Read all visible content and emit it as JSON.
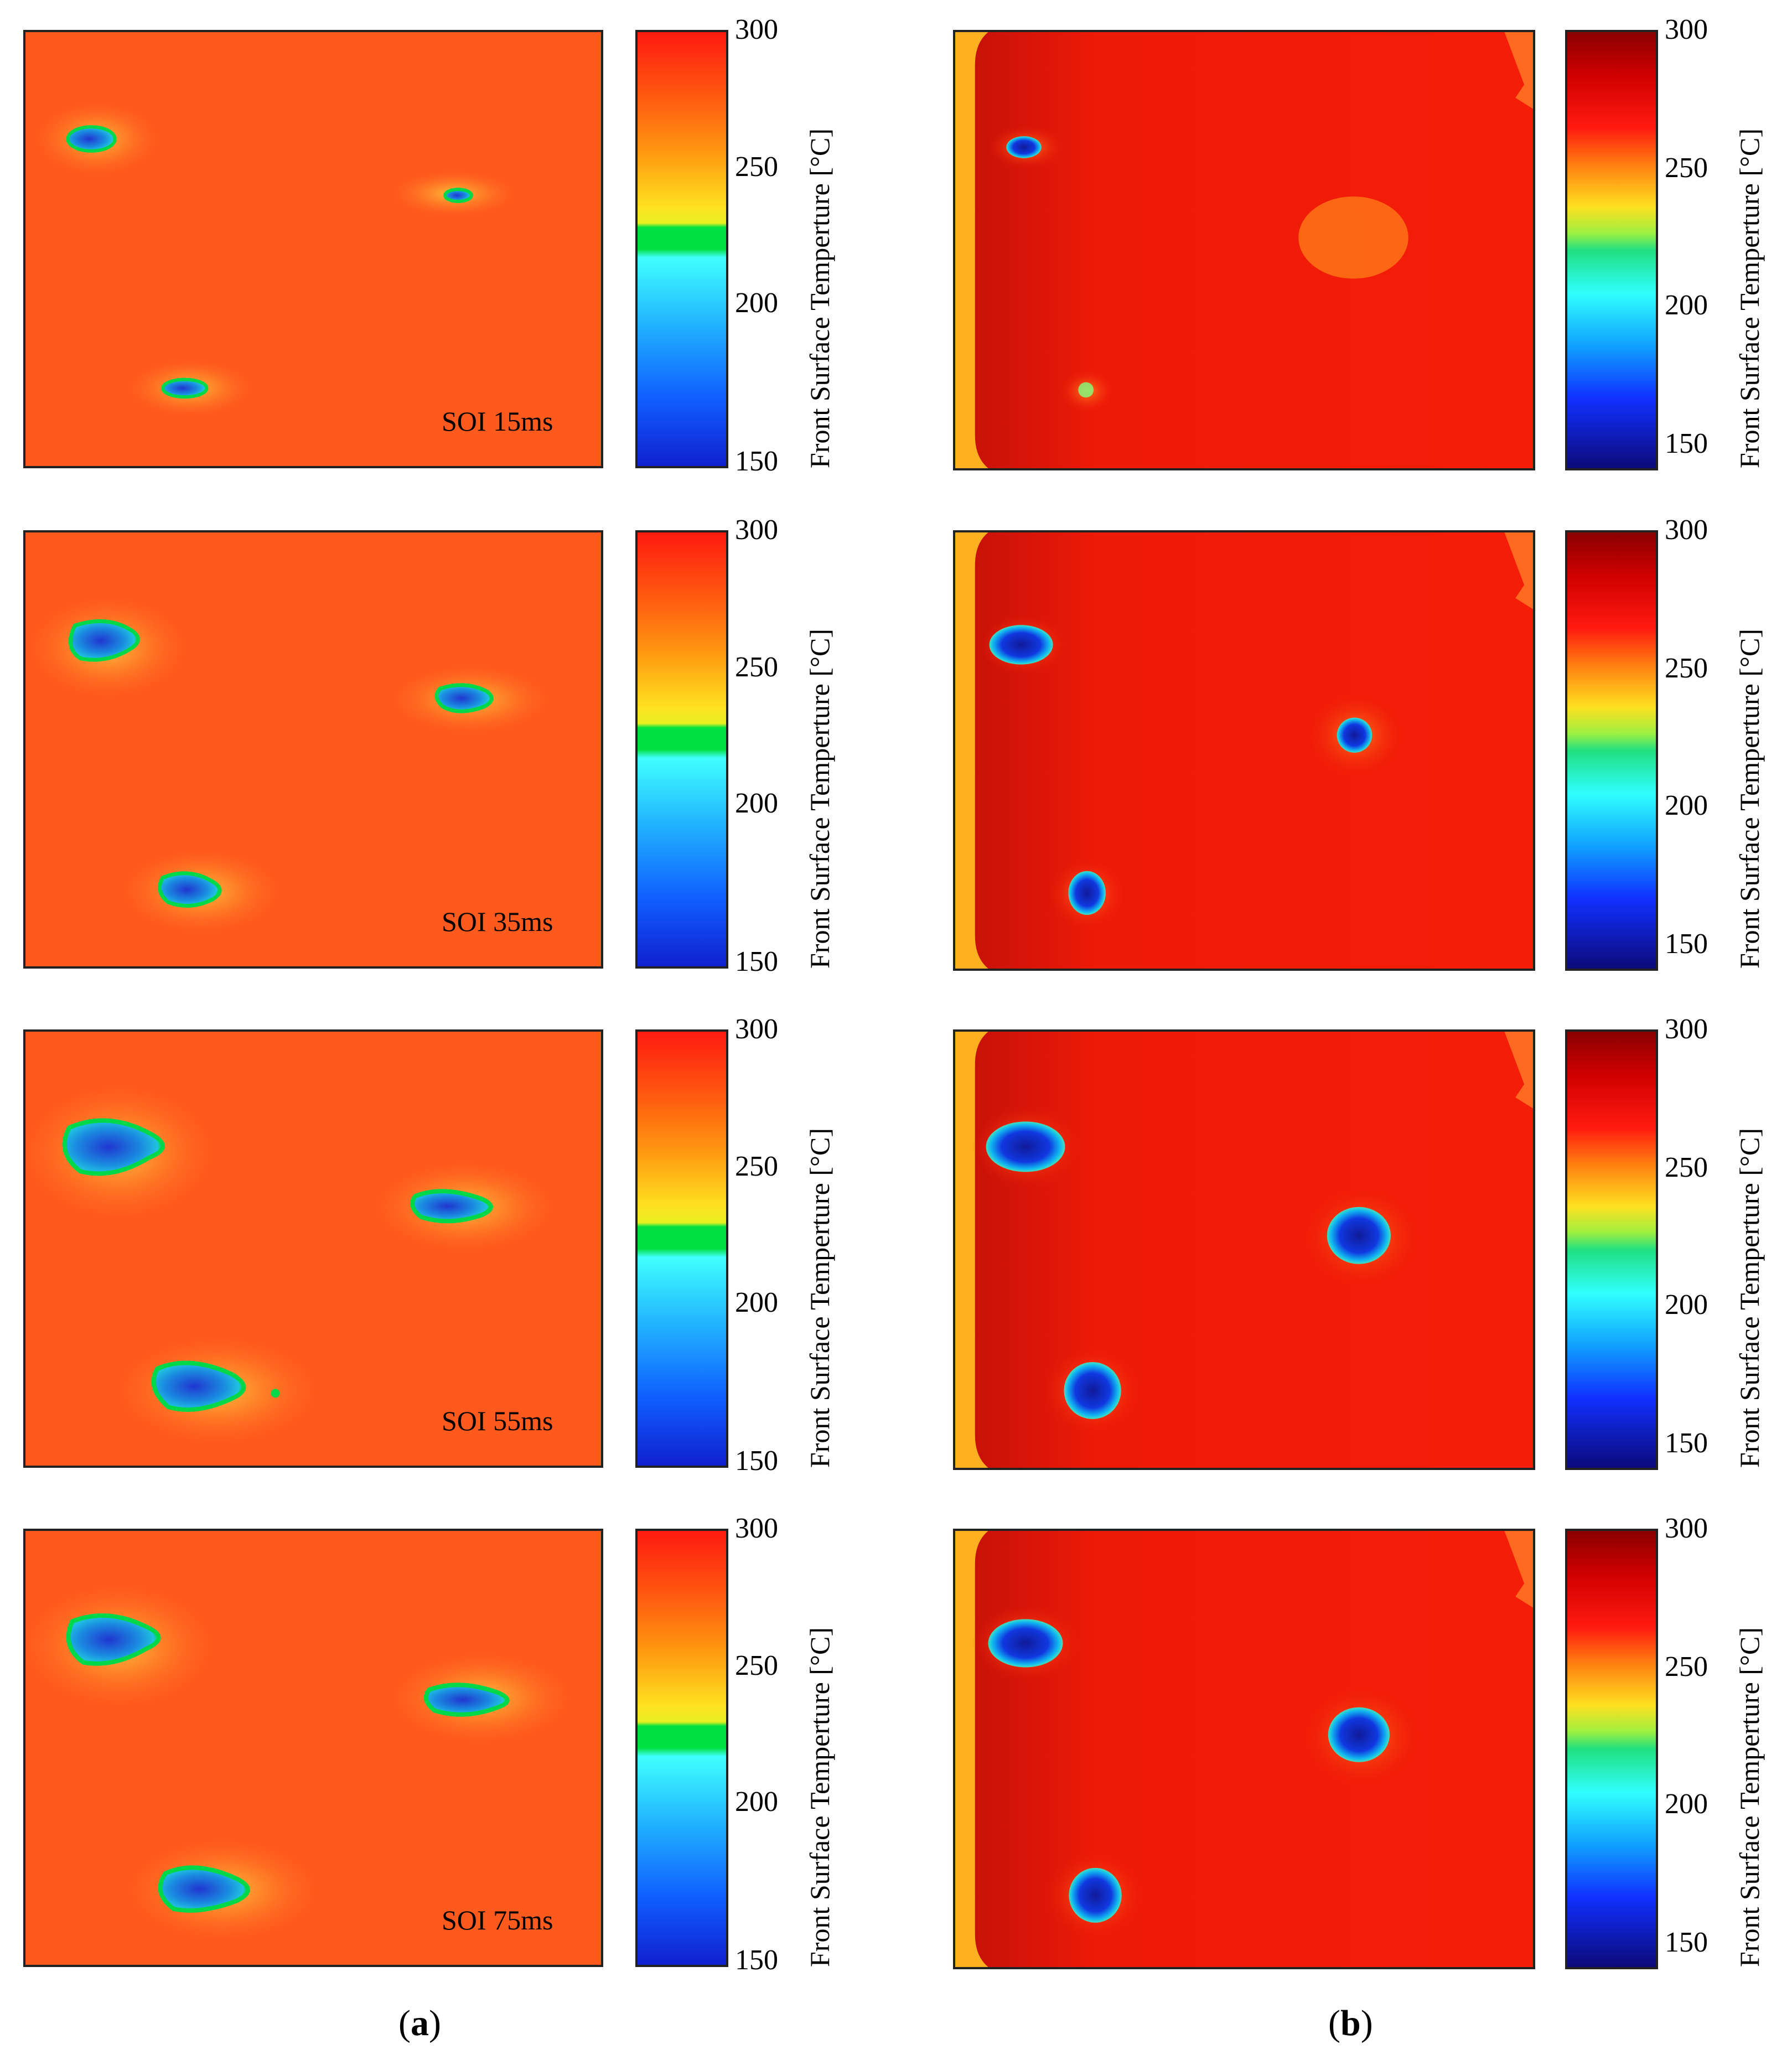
{
  "colorbar": {
    "title": "Front Surface Temperture [°C]",
    "ticks": [
      "300",
      "250",
      "200",
      "150"
    ]
  },
  "rows": [
    {
      "soi_label": "SOI 15ms"
    },
    {
      "soi_label": "SOI 35ms"
    },
    {
      "soi_label": "SOI 55ms"
    },
    {
      "soi_label": "SOI 75ms"
    }
  ],
  "sublabels": {
    "a": {
      "open": "(",
      "letter": "a",
      "close": ")"
    },
    "b": {
      "open": "(",
      "letter": "b",
      "close": ")"
    }
  },
  "colors": {
    "hot": "#ff3a10",
    "hot_b": "#f21d08",
    "cold": "#1a2fd8",
    "ring": "#00d84a",
    "edge": "#ffb020"
  }
}
